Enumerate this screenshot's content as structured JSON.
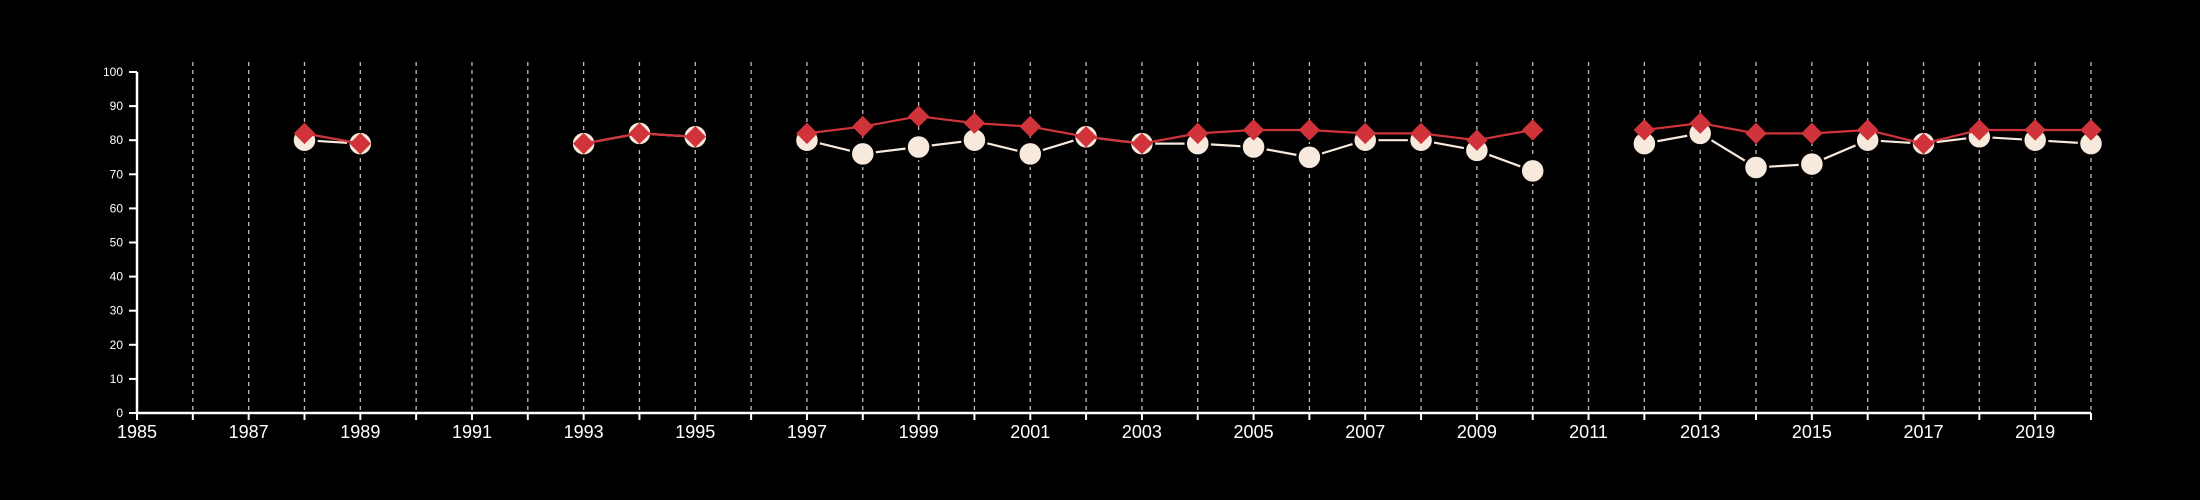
{
  "chart_data": {
    "type": "line",
    "title": "",
    "xlabel": "",
    "ylabel": "",
    "xlim": [
      1985,
      2020
    ],
    "ylim": [
      0,
      100
    ],
    "x_ticks": [
      1985,
      1987,
      1989,
      1991,
      1993,
      1995,
      1997,
      1999,
      2001,
      2003,
      2005,
      2007,
      2009,
      2011,
      2013,
      2015,
      2017,
      2019
    ],
    "y_ticks": [
      0,
      10,
      20,
      30,
      40,
      50,
      60,
      70,
      80,
      90,
      100
    ],
    "vertical_gridlines": "dashed, every year",
    "legend": "none",
    "colors": {
      "background": "#000000",
      "axis": "#ffffff",
      "series_red": "#d0343a",
      "series_cream": "#f7e9dc"
    },
    "series": [
      {
        "marker": "circle",
        "color": "#f7e9dc",
        "segments": [
          [
            [
              1988,
              80
            ],
            [
              1989,
              79
            ]
          ],
          [
            [
              1993,
              79
            ],
            [
              1994,
              82
            ],
            [
              1995,
              81
            ]
          ],
          [
            [
              1997,
              80
            ],
            [
              1998,
              76
            ],
            [
              1999,
              78
            ],
            [
              2000,
              80
            ],
            [
              2001,
              76
            ],
            [
              2002,
              81
            ],
            [
              2003,
              79
            ],
            [
              2004,
              79
            ],
            [
              2005,
              78
            ],
            [
              2006,
              75
            ],
            [
              2007,
              80
            ],
            [
              2008,
              80
            ],
            [
              2009,
              77
            ],
            [
              2010,
              71
            ]
          ],
          [
            [
              2012,
              79
            ],
            [
              2013,
              82
            ],
            [
              2014,
              72
            ],
            [
              2015,
              73
            ],
            [
              2016,
              80
            ],
            [
              2017,
              79
            ],
            [
              2018,
              81
            ],
            [
              2019,
              80
            ],
            [
              2020,
              79
            ]
          ]
        ]
      },
      {
        "marker": "diamond",
        "color": "#d0343a",
        "segments": [
          [
            [
              1988,
              82
            ],
            [
              1989,
              79
            ]
          ],
          [
            [
              1993,
              79
            ],
            [
              1994,
              82
            ],
            [
              1995,
              81
            ]
          ],
          [
            [
              1997,
              82
            ],
            [
              1998,
              84
            ],
            [
              1999,
              87
            ],
            [
              2000,
              85
            ],
            [
              2001,
              84
            ],
            [
              2002,
              81
            ],
            [
              2003,
              79
            ],
            [
              2004,
              82
            ],
            [
              2005,
              83
            ],
            [
              2006,
              83
            ],
            [
              2007,
              82
            ],
            [
              2008,
              82
            ],
            [
              2009,
              80
            ],
            [
              2010,
              83
            ]
          ],
          [
            [
              2012,
              83
            ],
            [
              2013,
              85
            ],
            [
              2014,
              82
            ],
            [
              2015,
              82
            ],
            [
              2016,
              83
            ],
            [
              2017,
              79
            ],
            [
              2018,
              83
            ],
            [
              2019,
              83
            ],
            [
              2020,
              83
            ]
          ]
        ]
      }
    ]
  }
}
